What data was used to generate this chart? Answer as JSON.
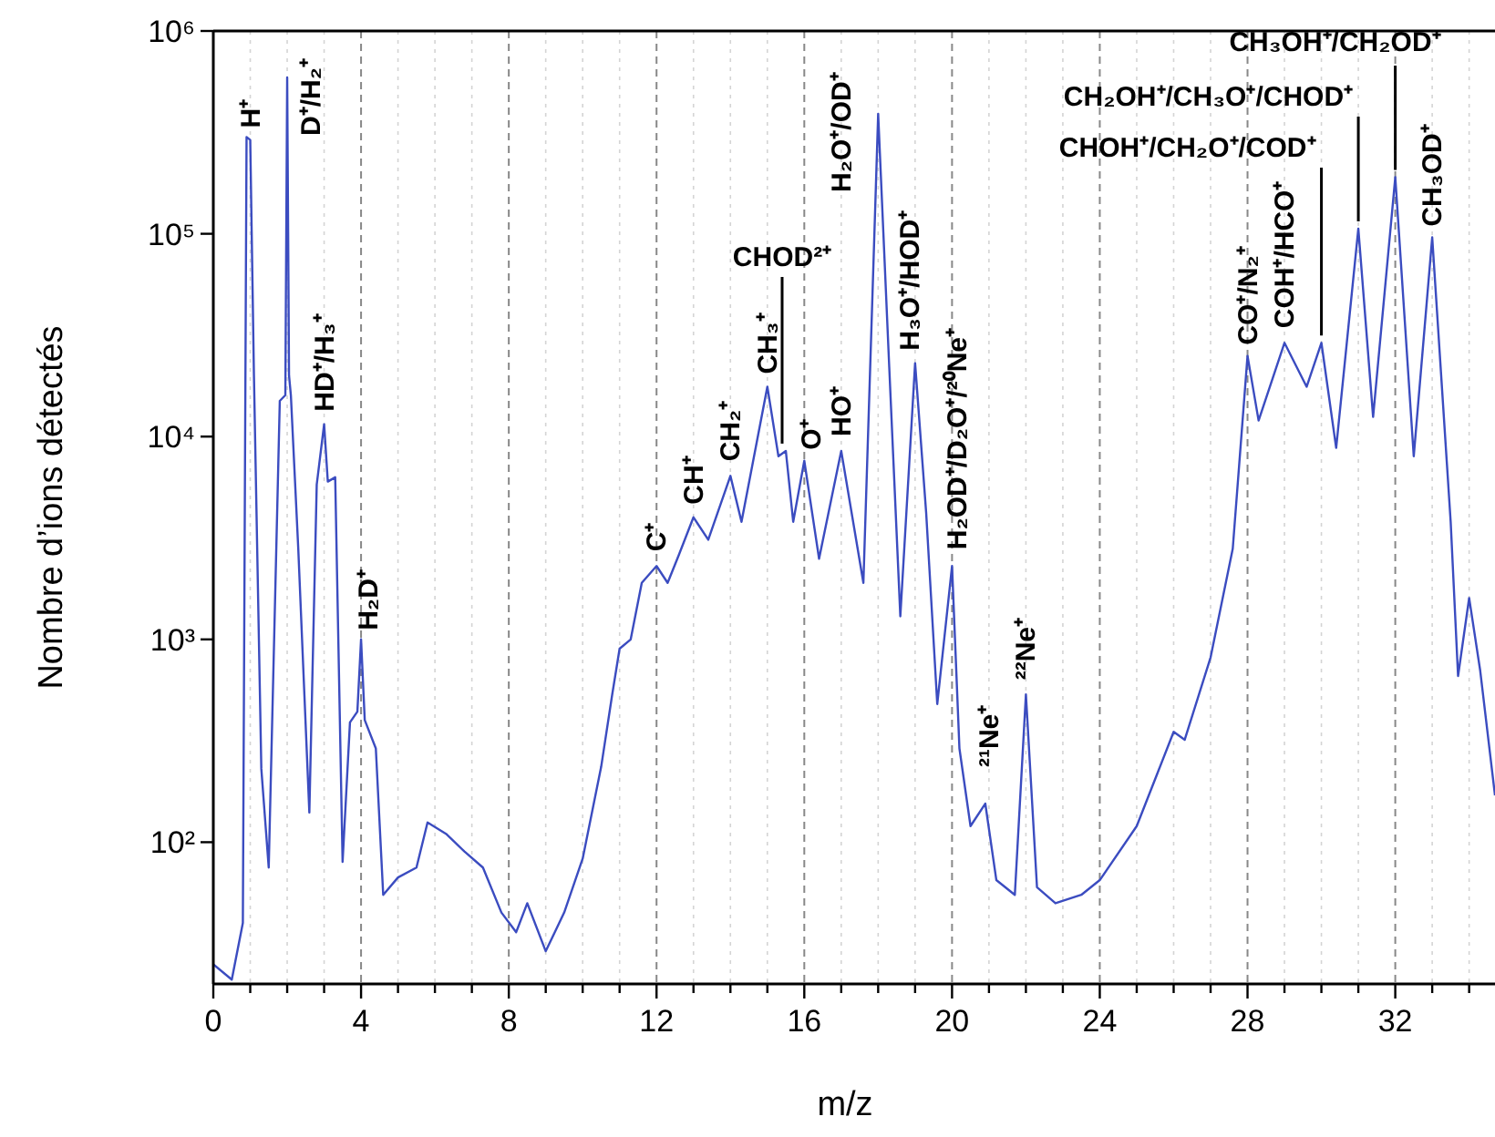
{
  "chart_data": {
    "type": "line",
    "xlabel": "m/z",
    "ylabel": "Nombre d’ions détectés",
    "log": "y",
    "grid": "x",
    "xlim": [
      0,
      34.7
    ],
    "ylim": [
      20,
      1000000
    ],
    "xticks": [
      0,
      {
        "value": 1,
        "label": null
      },
      {
        "value": 2,
        "label": null
      },
      {
        "value": 3,
        "label": null
      },
      4,
      {
        "value": 5,
        "label": null
      },
      {
        "value": 6,
        "label": null
      },
      {
        "value": 7,
        "label": null
      },
      8,
      {
        "value": 9,
        "label": null
      },
      {
        "value": 10,
        "label": null
      },
      {
        "value": 11,
        "label": null
      },
      12,
      {
        "value": 13,
        "label": null
      },
      {
        "value": 14,
        "label": null
      },
      {
        "value": 15,
        "label": null
      },
      16,
      {
        "value": 17,
        "label": null
      },
      {
        "value": 18,
        "label": null
      },
      {
        "value": 19,
        "label": null
      },
      20,
      {
        "value": 21,
        "label": null
      },
      {
        "value": 22,
        "label": null
      },
      {
        "value": 23,
        "label": null
      },
      24,
      {
        "value": 25,
        "label": null
      },
      {
        "value": 26,
        "label": null
      },
      {
        "value": 27,
        "label": null
      },
      28,
      {
        "value": 29,
        "label": null
      },
      {
        "value": 30,
        "label": null
      },
      {
        "value": 31,
        "label": null
      },
      32,
      {
        "value": 33,
        "label": null
      },
      {
        "value": 34,
        "label": null
      }
    ],
    "yticks": [
      {
        "value": 100,
        "label": "10²"
      },
      {
        "value": 1000,
        "label": "10³"
      },
      {
        "value": 10000,
        "label": "10⁴"
      },
      {
        "value": 100000,
        "label": "10⁵"
      },
      {
        "value": 1000000,
        "label": "10⁶"
      }
    ],
    "series": [
      {
        "color": "#3b4cc0",
        "x": [
          0,
          0.5,
          0.8,
          0.9,
          1.0,
          1.1,
          1.3,
          1.5,
          1.8,
          1.95,
          2.0,
          2.05,
          2.1,
          2.3,
          2.6,
          2.8,
          3.0,
          3.1,
          3.3,
          3.5,
          3.7,
          3.9,
          4.0,
          4.1,
          4.4,
          4.6,
          5.0,
          5.5,
          5.8,
          6.3,
          6.8,
          7.3,
          7.8,
          8.2,
          8.5,
          9.0,
          9.5,
          10.0,
          10.5,
          10.8,
          11.0,
          11.3,
          11.6,
          12.0,
          12.3,
          12.6,
          13.0,
          13.4,
          14.0,
          14.3,
          15.0,
          15.3,
          15.5,
          15.7,
          16.0,
          16.4,
          17.0,
          17.6,
          18.0,
          18.3,
          18.6,
          19.0,
          19.3,
          19.6,
          20.0,
          20.2,
          20.5,
          20.9,
          21.2,
          21.7,
          22.0,
          22.3,
          22.8,
          23.5,
          24.0,
          25.0,
          26.0,
          26.3,
          27.0,
          27.6,
          28.0,
          28.3,
          29.0,
          29.6,
          30.0,
          30.4,
          31.0,
          31.4,
          32.0,
          32.5,
          33.0,
          33.5,
          33.7,
          34.0,
          34.3,
          34.7
        ],
        "values": [
          25,
          21,
          40,
          300000,
          290000,
          20000,
          230,
          75,
          15000,
          16000,
          590000,
          20000,
          16000,
          2800,
          140,
          5800,
          11500,
          6000,
          6300,
          80,
          390,
          440,
          1000,
          400,
          290,
          55,
          67,
          75,
          125,
          110,
          90,
          75,
          45,
          36,
          50,
          29,
          45,
          83,
          235,
          535,
          900,
          1000,
          1900,
          2300,
          1900,
          2600,
          4000,
          3100,
          6400,
          3800,
          17600,
          8000,
          8500,
          3800,
          7600,
          2500,
          8500,
          1900,
          390000,
          22000,
          1300,
          23000,
          4200,
          480,
          2300,
          290,
          120,
          155,
          65,
          55,
          535,
          60,
          50,
          55,
          65,
          120,
          350,
          320,
          815,
          2800,
          25000,
          12000,
          29000,
          17600,
          29000,
          8800,
          106000,
          12500,
          190000,
          8000,
          96000,
          3800,
          660,
          1600,
          700,
          170
        ]
      }
    ],
    "annotations": [
      {
        "text": "H⁺",
        "x": 1,
        "y": 300000
      },
      {
        "text": "D⁺/H₂⁺",
        "x": 2,
        "y": 590000
      },
      {
        "text": "HD⁺/H₃⁺",
        "x": 3,
        "y": 11500
      },
      {
        "text": "H₂D⁺",
        "x": 4,
        "y": 1000
      },
      {
        "text": "C⁺",
        "x": 12,
        "y": 2300
      },
      {
        "text": "CH⁺",
        "x": 13,
        "y": 4000
      },
      {
        "text": "CH₂⁺",
        "x": 14,
        "y": 6400
      },
      {
        "text": "CH₃⁺",
        "x": 15,
        "y": 17600
      },
      {
        "text": "CHOD²⁺",
        "x": 15.4,
        "y": 8500
      },
      {
        "text": "O⁺",
        "x": 16,
        "y": 7600
      },
      {
        "text": "HO⁺",
        "x": 17,
        "y": 8500
      },
      {
        "text": "H₂O⁺/OD⁺",
        "x": 18,
        "y": 390000
      },
      {
        "text": "H₃O⁺/HOD⁺",
        "x": 19,
        "y": 23000
      },
      {
        "text": "H₂OD⁺/D₂O⁺/²⁰Ne⁺",
        "x": 20,
        "y": 2300
      },
      {
        "text": "²¹Ne⁺",
        "x": 21,
        "y": 155
      },
      {
        "text": "²²Ne⁺",
        "x": 22,
        "y": 535
      },
      {
        "text": "CO⁺/N₂⁺",
        "x": 28,
        "y": 25000
      },
      {
        "text": "COH⁺/HCO⁺",
        "x": 29,
        "y": 29000
      },
      {
        "text": "CHOH⁺/CH₂O⁺/COD⁺",
        "x": 30,
        "y": 29000
      },
      {
        "text": "CH₂OH⁺/CH₃O⁺/CHOD⁺",
        "x": 31,
        "y": 106000
      },
      {
        "text": "CH₃OH⁺/CH₂OD⁺",
        "x": 32,
        "y": 190000
      },
      {
        "text": "CH₃OD⁺",
        "x": 33,
        "y": 96000
      }
    ]
  }
}
